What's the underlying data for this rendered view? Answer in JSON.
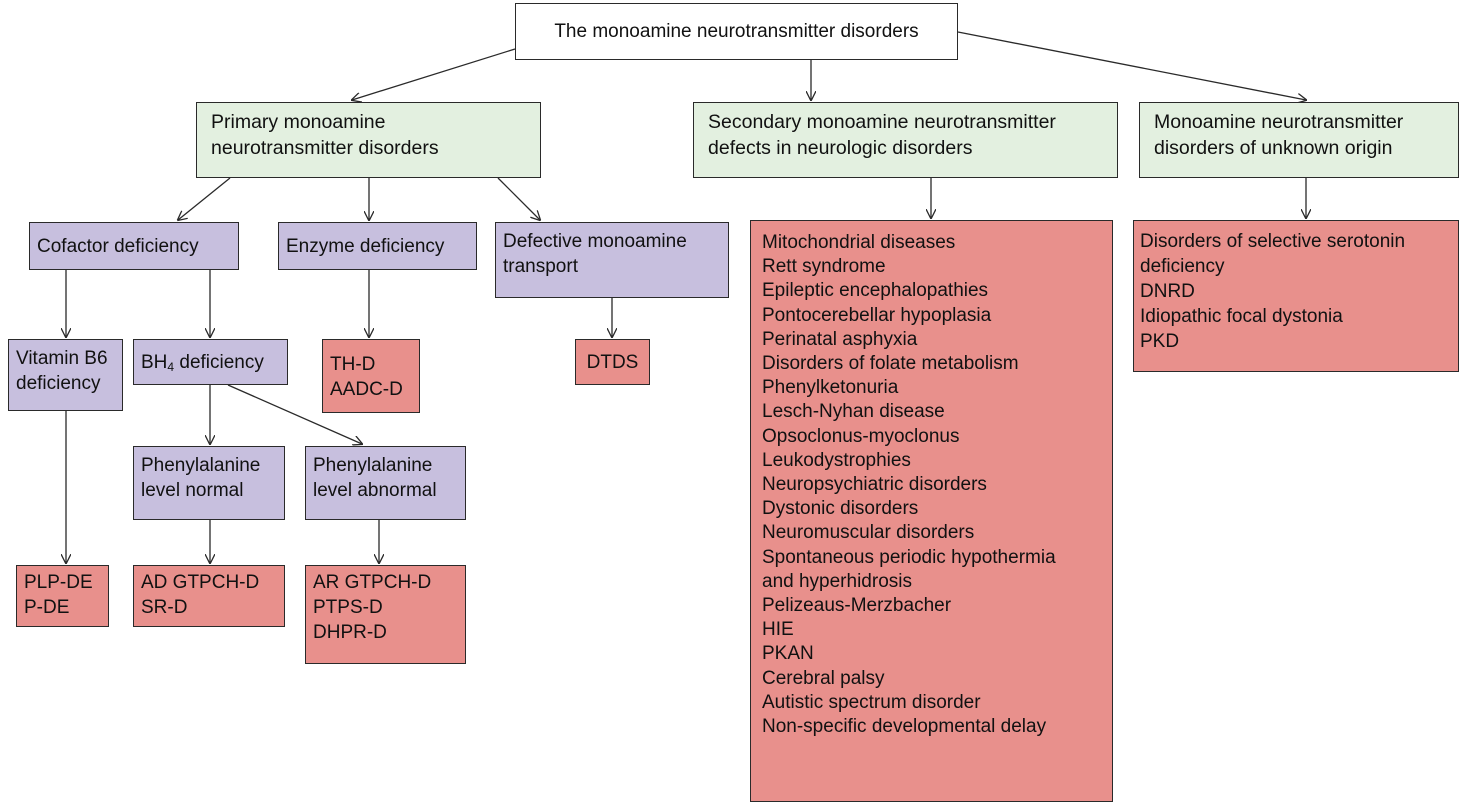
{
  "root": {
    "label": "The monoamine neurotransmitter disorders"
  },
  "categories": {
    "primary": {
      "lines": [
        "Primary monoamine",
        "neurotransmitter disorders"
      ]
    },
    "secondary": {
      "lines": [
        "Secondary monoamine neurotransmitter",
        "defects in neurologic disorders"
      ]
    },
    "unknown": {
      "lines": [
        "Monoamine neurotransmitter",
        "disorders of unknown origin"
      ]
    }
  },
  "primary_branches": {
    "cofactor": {
      "label": "Cofactor deficiency"
    },
    "enzyme": {
      "label": "Enzyme deficiency"
    },
    "transport": {
      "lines": [
        "Defective monoamine",
        "transport"
      ]
    }
  },
  "cofactor_branches": {
    "vitamin_b6": {
      "lines": [
        "Vitamin B6",
        "deficiency"
      ]
    },
    "bh4": {
      "prefix": "BH",
      "subscript": "4",
      "suffix": " deficiency"
    }
  },
  "bh4_branches": {
    "phe_normal": {
      "lines": [
        "Phenylalanine",
        "level normal"
      ]
    },
    "phe_abnormal": {
      "lines": [
        "Phenylalanine",
        "level abnormal"
      ]
    }
  },
  "leaves": {
    "vitamin_b6": [
      "PLP-DE",
      "P-DE"
    ],
    "phe_normal": [
      "AD GTPCH-D",
      "SR-D"
    ],
    "phe_abnormal": [
      "AR GTPCH-D",
      "PTPS-D",
      "DHPR-D"
    ],
    "enzyme": [
      "TH-D",
      "AADC-D"
    ],
    "transport": [
      "DTDS"
    ],
    "secondary": [
      "Mitochondrial diseases",
      "Rett syndrome",
      "Epileptic encephalopathies",
      "Pontocerebellar hypoplasia",
      "Perinatal asphyxia",
      "Disorders of folate metabolism",
      "Phenylketonuria",
      "Lesch-Nyhan disease",
      "Opsoclonus-myoclonus",
      "Leukodystrophies",
      "Neuropsychiatric disorders",
      "Dystonic disorders",
      "Neuromuscular disorders",
      "Spontaneous periodic hypothermia",
      "and hyperhidrosis",
      "Pelizeaus-Merzbacher",
      "HIE",
      "PKAN",
      "Cerebral palsy",
      "Autistic spectrum disorder",
      "Non-specific developmental delay"
    ],
    "unknown": [
      "Disorders of selective serotonin",
      "deficiency",
      "DNRD",
      "Idiopathic focal dystonia",
      "PKD"
    ]
  },
  "colors": {
    "root": "#ffffff",
    "category": "#e3f0e0",
    "intermediate": "#c7bfde",
    "leaf": "#e8908c",
    "line": "#2a2a2a"
  }
}
